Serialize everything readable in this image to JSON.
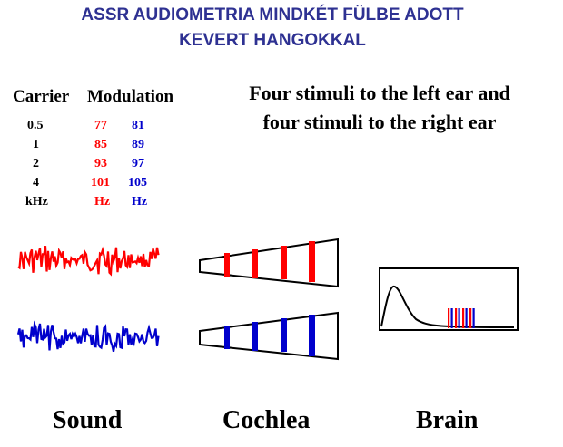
{
  "title": {
    "line1": "ASSR AUDIOMETRIA MINDKÉT FÜLBE ADOTT",
    "line2": "KEVERT HANGOKKAL"
  },
  "table": {
    "carrier_header": "Carrier",
    "modulation_header": "Modulation",
    "rows": [
      {
        "carrier": "0.5",
        "left": "77",
        "right": "81"
      },
      {
        "carrier": "1",
        "left": "85",
        "right": "89"
      },
      {
        "carrier": "2",
        "left": "93",
        "right": "97"
      },
      {
        "carrier": "4",
        "left": "101",
        "right": "105"
      }
    ],
    "units": {
      "carrier": "kHz",
      "left": "Hz",
      "right": "Hz"
    }
  },
  "stimuli_text": {
    "line1": "Four stimuli to the left ear and",
    "line2": "four stimuli to the right ear"
  },
  "captions": {
    "sound": "Sound",
    "cochlea": "Cochlea",
    "brain": "Brain"
  },
  "colors": {
    "title": "#2e3192",
    "left_ear": "#ff0000",
    "right_ear": "#0000cc"
  }
}
